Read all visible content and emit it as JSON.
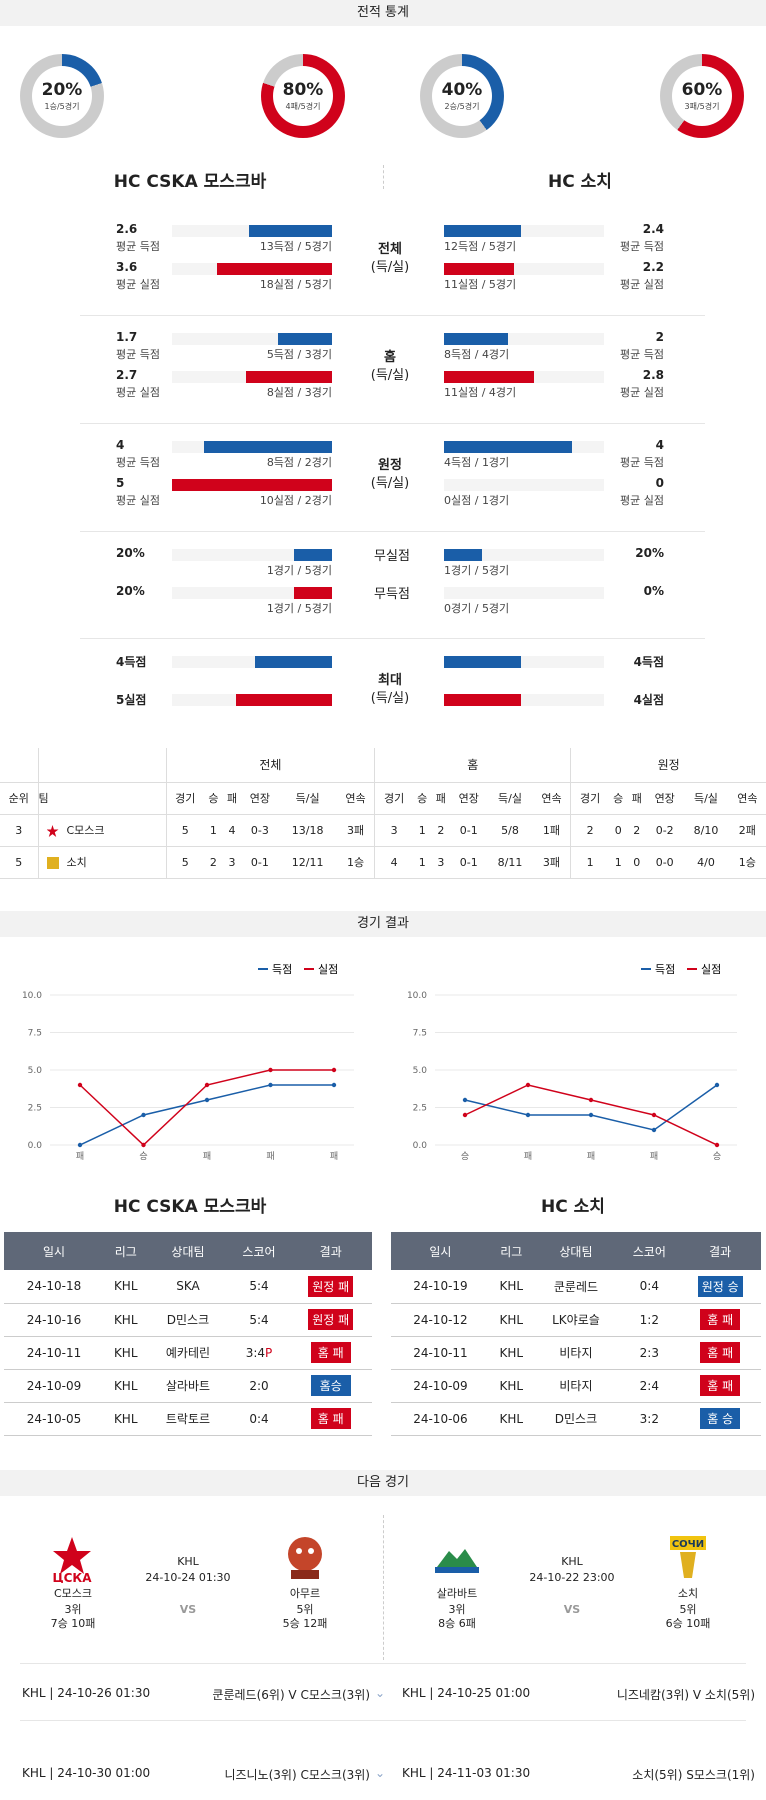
{
  "sections": {
    "stats": "전적 통계",
    "results": "경기 결과",
    "next": "다음 경기"
  },
  "left": {
    "name": "HC CSKA 모스크바",
    "donut1": {
      "pct": "20%",
      "sub": "1승/5경기"
    },
    "donut2": {
      "pct": "80%",
      "sub": "4패/5경기"
    }
  },
  "right": {
    "name": "HC 소치",
    "donut1": {
      "pct": "40%",
      "sub": "2승/5경기"
    },
    "donut2": {
      "pct": "60%",
      "sub": "3패/5경기"
    }
  },
  "stat_groups": [
    {
      "label1": "전체",
      "label2": "(득/실)",
      "rows": [
        {
          "lv": "2.6",
          "ll": "평균 득점",
          "lc": "13득점 / 5경기",
          "rv": "2.4",
          "rl": "평균 득점",
          "rc": "12득점 / 5경기"
        },
        {
          "lv": "3.6",
          "ll": "평균 실점",
          "lc": "18실점 / 5경기",
          "rv": "2.2",
          "rl": "평균 실점",
          "rc": "11실점 / 5경기"
        }
      ]
    },
    {
      "label1": "홈",
      "label2": "(득/실)",
      "rows": [
        {
          "lv": "1.7",
          "ll": "평균 득점",
          "lc": "5득점 / 3경기",
          "rv": "2",
          "rl": "평균 득점",
          "rc": "8득점 / 4경기"
        },
        {
          "lv": "2.7",
          "ll": "평균 실점",
          "lc": "8실점 / 3경기",
          "rv": "2.8",
          "rl": "평균 실점",
          "rc": "11실점 / 4경기"
        }
      ]
    },
    {
      "label1": "원정",
      "label2": "(득/실)",
      "rows": [
        {
          "lv": "4",
          "ll": "평균 득점",
          "lc": "8득점 / 2경기",
          "rv": "4",
          "rl": "평균 득점",
          "rc": "4득점 / 1경기"
        },
        {
          "lv": "5",
          "ll": "평균 실점",
          "lc": "10실점 / 2경기",
          "rv": "0",
          "rl": "평균 실점",
          "rc": "0실점 / 1경기"
        }
      ]
    },
    {
      "label1": "",
      "label2": "",
      "rows": [
        {
          "lv": "20%",
          "ll": "",
          "lc": "1경기 / 5경기",
          "rv": "20%",
          "rl": "",
          "rc": "1경기 / 5경기",
          "mid": "무실점"
        },
        {
          "lv": "20%",
          "ll": "",
          "lc": "1경기 / 5경기",
          "rv": "0%",
          "rl": "",
          "rc": "0경기 / 5경기",
          "mid": "무득점"
        }
      ]
    },
    {
      "label1": "최대",
      "label2": "(득/실)",
      "rows": [
        {
          "lv": "4득점",
          "ll": "",
          "lc": "",
          "rv": "4득점",
          "rl": "",
          "rc": ""
        },
        {
          "lv": "5실점",
          "ll": "",
          "lc": "",
          "rv": "4실점",
          "rl": "",
          "rc": ""
        }
      ]
    }
  ],
  "bar_fractions": [
    [
      0.52,
      0.48
    ],
    [
      0.72,
      0.44
    ],
    [
      0.34,
      0.4
    ],
    [
      0.54,
      0.56
    ],
    [
      0.8,
      0.8
    ],
    [
      1.0,
      0.0
    ],
    [
      0.24,
      0.24
    ],
    [
      0.24,
      0.0
    ],
    [
      0.48,
      0.48
    ],
    [
      0.6,
      0.48
    ]
  ],
  "standings": {
    "groups": [
      "전체",
      "홈",
      "원정"
    ],
    "head": [
      "순위",
      "팀",
      "경기",
      "승",
      "패",
      "연장",
      "득/실",
      "연속",
      "경기",
      "승",
      "패",
      "연장",
      "득/실",
      "연속",
      "경기",
      "승",
      "패",
      "연장",
      "득/실",
      "연속"
    ],
    "rows": [
      [
        "3",
        "C모스크",
        "5",
        "1",
        "4",
        "0-3",
        "13/18",
        "3패",
        "3",
        "1",
        "2",
        "0-1",
        "5/8",
        "1패",
        "2",
        "0",
        "2",
        "0-2",
        "8/10",
        "2패"
      ],
      [
        "5",
        "소치",
        "5",
        "2",
        "3",
        "0-1",
        "12/11",
        "1승",
        "4",
        "1",
        "3",
        "0-1",
        "8/11",
        "3패",
        "1",
        "1",
        "0",
        "0-0",
        "4/0",
        "1승"
      ]
    ]
  },
  "charts": {
    "legend_for": "득점",
    "legend_against": "실점",
    "yticks": [
      "10.0",
      "7.5",
      "5.0",
      "2.5",
      "0.0"
    ]
  },
  "chart_data": [
    {
      "type": "line",
      "categories": [
        "패",
        "승",
        "패",
        "패",
        "패"
      ],
      "ylim": [
        0,
        10
      ],
      "series": [
        {
          "name": "득점",
          "values": [
            0,
            2,
            3,
            4,
            4
          ]
        },
        {
          "name": "실점",
          "values": [
            4,
            0,
            4,
            5,
            5
          ]
        }
      ]
    },
    {
      "type": "line",
      "categories": [
        "승",
        "패",
        "패",
        "패",
        "승"
      ],
      "ylim": [
        0,
        10
      ],
      "series": [
        {
          "name": "득점",
          "values": [
            3,
            2,
            2,
            1,
            4
          ]
        },
        {
          "name": "실점",
          "values": [
            2,
            4,
            3,
            2,
            0
          ]
        }
      ]
    }
  ],
  "results_head": [
    "일시",
    "리그",
    "상대팀",
    "스코어",
    "결과"
  ],
  "left_results": [
    [
      "24-10-18",
      "KHL",
      "SKA",
      "5:4",
      "원정 패",
      "red"
    ],
    [
      "24-10-16",
      "KHL",
      "D민스크",
      "5:4",
      "원정 패",
      "red"
    ],
    [
      "24-10-11",
      "KHL",
      "예카테린",
      "3:4P",
      "홈 패",
      "red"
    ],
    [
      "24-10-09",
      "KHL",
      "살라바트",
      "2:0",
      "홈승",
      "blue"
    ],
    [
      "24-10-05",
      "KHL",
      "트락토르",
      "0:4",
      "홈 패",
      "red"
    ]
  ],
  "right_results": [
    [
      "24-10-19",
      "KHL",
      "쿤룬레드",
      "0:4",
      "원정 승",
      "blue"
    ],
    [
      "24-10-12",
      "KHL",
      "LK야로슬",
      "1:2",
      "홈 패",
      "red"
    ],
    [
      "24-10-11",
      "KHL",
      "비타지",
      "2:3",
      "홈 패",
      "red"
    ],
    [
      "24-10-09",
      "KHL",
      "비타지",
      "2:4",
      "홈 패",
      "red"
    ],
    [
      "24-10-06",
      "KHL",
      "D민스크",
      "3:2",
      "홈 승",
      "blue"
    ]
  ],
  "next": {
    "m1": {
      "home": "C모스크",
      "home_rank": "3위",
      "home_rec": "7승 10패",
      "league": "KHL",
      "date": "24-10-24 01:30",
      "vs": "VS",
      "away": "아무르",
      "away_rank": "5위",
      "away_rec": "5승 12패"
    },
    "m2": {
      "home": "살라바트",
      "home_rank": "3위",
      "home_rec": "8승 6패",
      "league": "KHL",
      "date": "24-10-22 23:00",
      "vs": "VS",
      "away": "소치",
      "away_rank": "5위",
      "away_rec": "6승 10패"
    }
  },
  "history": [
    {
      "l": "KHL | 24-10-26 01:30",
      "lm": "쿤룬레드(6위) V  C모스크(3위)",
      "r": "KHL | 24-10-25 01:00",
      "rm": "니즈네캄(3위) V  소치(5위)"
    },
    {
      "l": "KHL | 24-10-30 01:00",
      "lm": "니즈니노(3위)   C모스크(3위)",
      "r": "KHL | 24-11-03 01:30",
      "rm": "소치(5위)   S모스크(1위)"
    }
  ],
  "colors": {
    "blue": "#1a5ea8",
    "red": "#d0021b"
  }
}
